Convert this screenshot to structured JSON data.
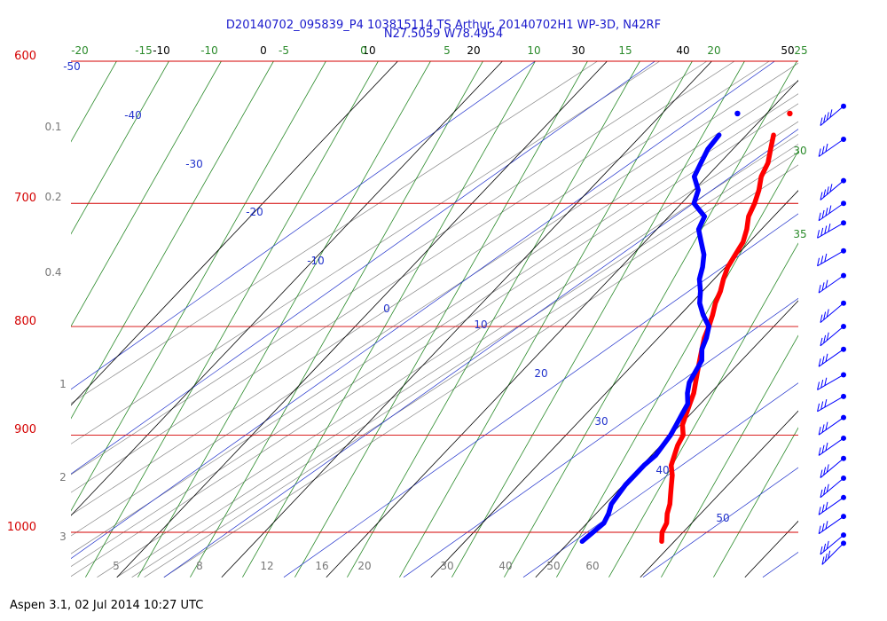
{
  "header": {
    "title_line1": "D20140702_095839_P4 103815114 TS Arthur, 20140702H1 WP-3D, N42RF",
    "title_line2": "N27.5059 W78.4954"
  },
  "footer": {
    "version_text": "Aspen 3.1, 02 Jul 2014  10:27 UTC"
  },
  "colors": {
    "isobar": "#d40000",
    "isotherm": "#000000",
    "dry_adiabat": "#2233cc",
    "moist_adiabat": "#2a8a2a",
    "mixing_ratio": "#888888",
    "temperature": "#ff0000",
    "dewpoint": "#0000ff",
    "title": "#1a1acc",
    "pressure_label": "#d40000",
    "height_label": "#777777"
  },
  "chart_data": {
    "type": "skew-t",
    "pressure_range": [
      1050,
      600
    ],
    "isobars": [
      "600",
      "700",
      "800",
      "900",
      "1000"
    ],
    "height_ticks": [
      "0.1",
      "0.2",
      "0.4",
      "1",
      "2",
      "3"
    ],
    "isotherm_labels": [
      "-10",
      "0",
      "10",
      "20",
      "30",
      "40",
      "50"
    ],
    "moist_adiabat_labels": [
      "-20",
      "-15",
      "-10",
      "-5",
      "0",
      "5",
      "10",
      "15",
      "20",
      "25",
      "30",
      "35"
    ],
    "dry_adiabat_labels": [
      "-50",
      "-40",
      "-30",
      "-20",
      "-10",
      "0",
      "10",
      "20",
      "30",
      "40",
      "50"
    ],
    "mixing_ratio_labels": [
      "5",
      "8",
      "12",
      "16",
      "20",
      "30",
      "40",
      "50",
      "60"
    ],
    "temperature": {
      "pressure": [
        1010,
        1000,
        990,
        980,
        970,
        960,
        950,
        940,
        930,
        920,
        910,
        900,
        890,
        880,
        870,
        860,
        850,
        840,
        830,
        820,
        810,
        800,
        790,
        780,
        770,
        760,
        750,
        740,
        730,
        720,
        710,
        700,
        690,
        680,
        670,
        660,
        650
      ],
      "temp": [
        28.8,
        28.0,
        27.6,
        26.8,
        26.2,
        25.4,
        24.6,
        23.8,
        22.8,
        22.2,
        21.6,
        21.2,
        20.2,
        19.6,
        19.0,
        18.4,
        17.6,
        16.8,
        16.0,
        15.2,
        14.4,
        13.8,
        13.1,
        12.3,
        11.7,
        10.9,
        10.2,
        9.8,
        9.4,
        8.6,
        7.6,
        7.0,
        6.2,
        5.2,
        4.6,
        3.6,
        2.6
      ]
    },
    "dewpoint": {
      "pressure": [
        1010,
        1000,
        990,
        980,
        970,
        960,
        950,
        940,
        930,
        920,
        910,
        900,
        890,
        880,
        870,
        860,
        850,
        840,
        830,
        820,
        810,
        800,
        790,
        780,
        770,
        760,
        750,
        740,
        730,
        720,
        710,
        700,
        690,
        680,
        670,
        660,
        650
      ],
      "dewpt": [
        21.2,
        21.4,
        21.6,
        21.2,
        20.6,
        20.4,
        20.2,
        20.2,
        20.2,
        20.4,
        20.2,
        20.0,
        19.6,
        19.2,
        18.8,
        17.8,
        17.0,
        16.6,
        16.2,
        15.2,
        14.6,
        13.8,
        12.2,
        10.8,
        9.8,
        8.6,
        7.8,
        6.8,
        5.4,
        4.0,
        3.4,
        1.2,
        0.4,
        -1.2,
        -1.8,
        -2.4,
        -2.6
      ]
    },
    "top_markers": {
      "pressure": 635,
      "temp": 2.2,
      "dewpt": -2.8
    }
  },
  "wind_profile": {
    "pressures": [
      630,
      653,
      683,
      700,
      715,
      737,
      757,
      780,
      800,
      820,
      843,
      863,
      883,
      903,
      923,
      943,
      963,
      983,
      1003,
      1012
    ],
    "barbs": [
      [
        40,
        2
      ],
      [
        35,
        1
      ],
      [
        40,
        2
      ],
      [
        35,
        2
      ],
      [
        30,
        2
      ],
      [
        30,
        1
      ],
      [
        35,
        1
      ],
      [
        40,
        1
      ],
      [
        40,
        1
      ],
      [
        35,
        1
      ],
      [
        30,
        1
      ],
      [
        30,
        1
      ],
      [
        35,
        1
      ],
      [
        35,
        1
      ],
      [
        40,
        1
      ],
      [
        40,
        1
      ],
      [
        35,
        1
      ],
      [
        35,
        1
      ],
      [
        40,
        1
      ],
      [
        45,
        1
      ]
    ]
  }
}
